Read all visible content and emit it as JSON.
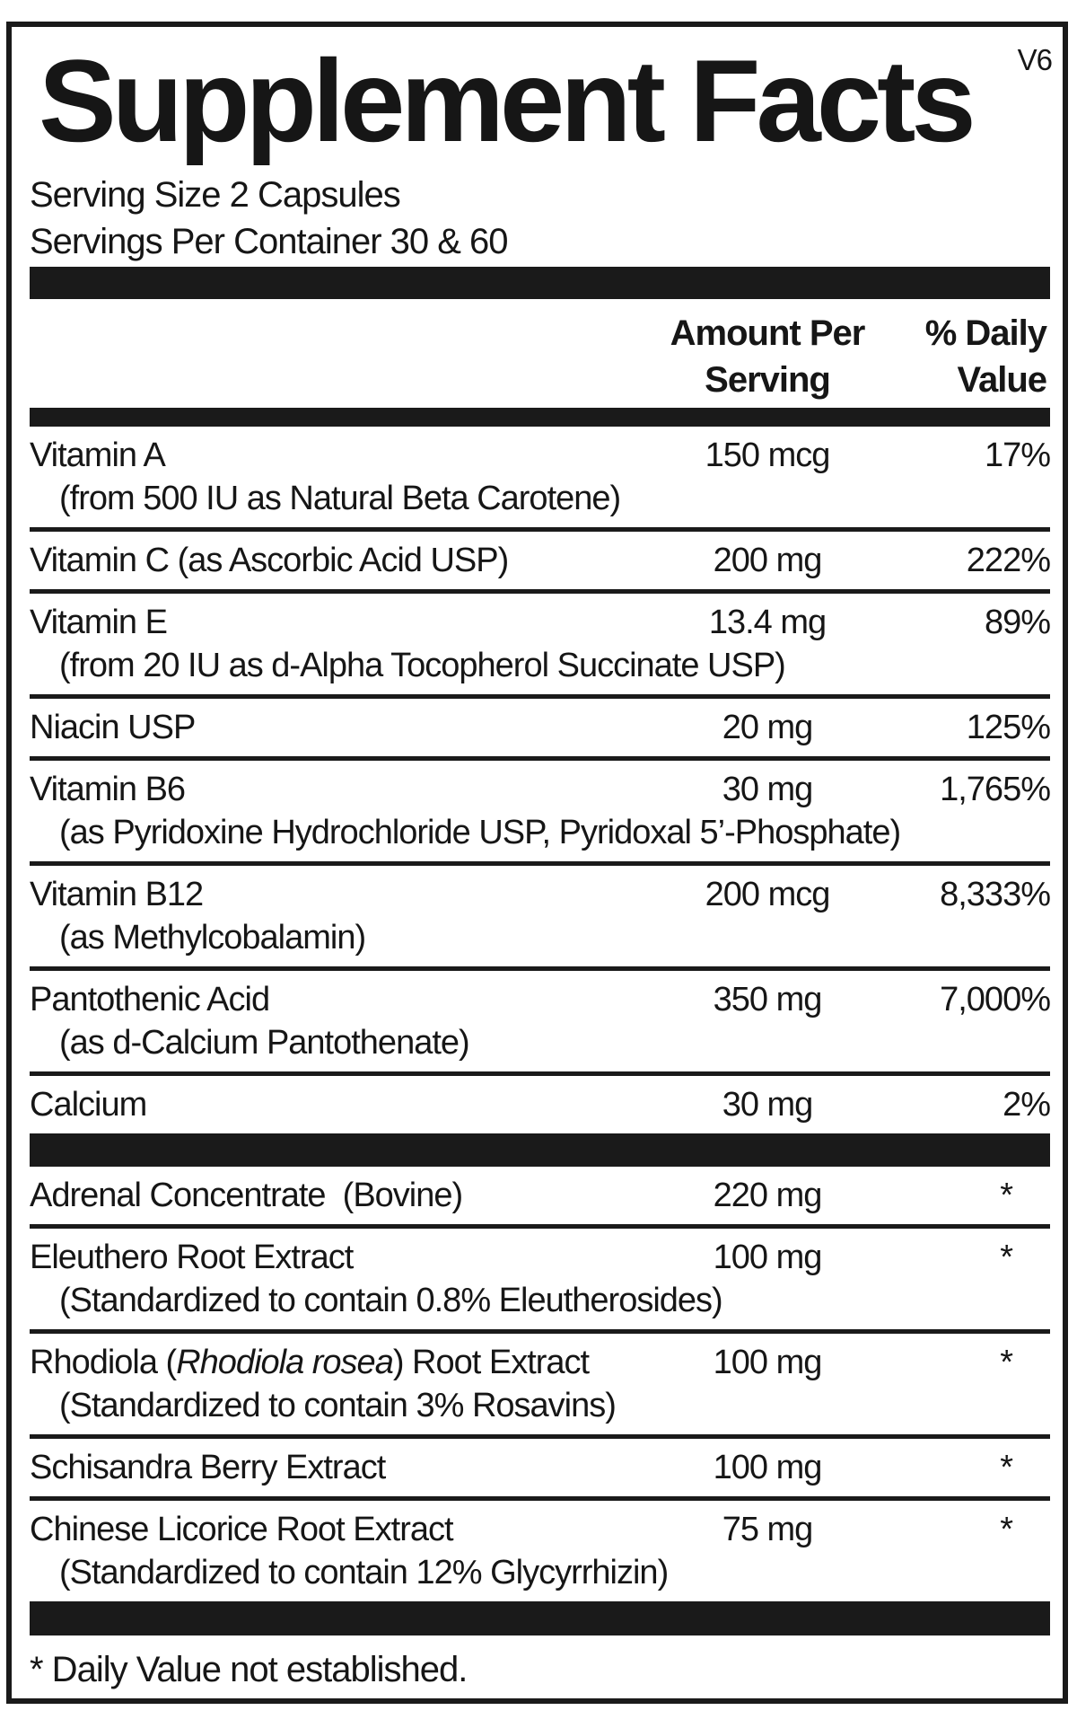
{
  "colors": {
    "ink": "#1a1a1a",
    "background": "#ffffff"
  },
  "version_tag": "V6",
  "title": "Supplement Facts",
  "serving": {
    "size": "Serving Size 2 Capsules",
    "per_container": "Servings Per Container 30 & 60"
  },
  "columns": {
    "amount_line1": "Amount Per",
    "amount_line2": "Serving",
    "dv_line1": "% Daily",
    "dv_line2": "Value"
  },
  "vitamin_rows": [
    {
      "name": "Vitamin A",
      "sub": "(from 500 IU as Natural Beta Carotene)",
      "amount": "150 mcg",
      "dv": "17%"
    },
    {
      "name": "Vitamin C (as Ascorbic Acid USP)",
      "amount": "200 mg",
      "dv": "222%"
    },
    {
      "name": "Vitamin E",
      "sub": "(from 20 IU as d-Alpha Tocopherol Succinate USP)",
      "amount": "13.4 mg",
      "dv": "89%"
    },
    {
      "name": "Niacin USP",
      "amount": "20 mg",
      "dv": "125%"
    },
    {
      "name": "Vitamin B6",
      "sub": "(as Pyridoxine Hydrochloride USP, Pyridoxal 5’-Phosphate)",
      "amount": "30 mg",
      "dv": "1,765%"
    },
    {
      "name": "Vitamin B12",
      "sub": "(as Methylcobalamin)",
      "amount": "200 mcg",
      "dv": "8,333%"
    },
    {
      "name": "Pantothenic Acid",
      "sub": "(as d-Calcium Pantothenate)",
      "amount": "350 mg",
      "dv": "7,000%"
    },
    {
      "name": "Calcium",
      "amount": "30 mg",
      "dv": "2%"
    }
  ],
  "herb_rows": [
    {
      "name": "Adrenal Concentrate  (Bovine)",
      "amount": "220 mg",
      "dv": "*"
    },
    {
      "name": "Eleuthero Root Extract",
      "sub": "(Standardized to contain 0.8% Eleutherosides)",
      "amount": "100 mg",
      "dv": "*"
    },
    {
      "name_prefix": "Rhodiola (",
      "name_italic": "Rhodiola rosea",
      "name_suffix": ") Root Extract",
      "sub": "(Standardized to contain 3% Rosavins)",
      "amount": "100 mg",
      "dv": "*"
    },
    {
      "name": "Schisandra Berry Extract",
      "amount": "100 mg",
      "dv": "*"
    },
    {
      "name": "Chinese Licorice Root Extract",
      "sub": "(Standardized to contain 12% Glycyrrhizin)",
      "amount": "75 mg",
      "dv": "*"
    }
  ],
  "footnote": "* Daily Value not established."
}
